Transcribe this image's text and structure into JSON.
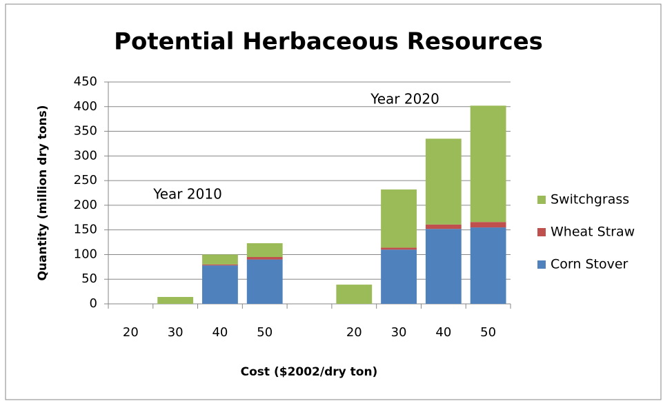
{
  "chart_data": {
    "type": "stacked_bar",
    "title": "Potential Herbaceous Resources",
    "y_label": "Quantity (million dry tons)",
    "x_label": "Cost ($2002/dry ton)",
    "annotations": [
      "Year 2010",
      "Year 2020"
    ],
    "categories": [
      "20",
      "30",
      "40",
      "50",
      null,
      "20",
      "30",
      "40",
      "50"
    ],
    "series": [
      {
        "name": "Corn Stover",
        "color": "#4f81bd",
        "values": [
          0,
          0,
          78,
          90,
          null,
          0,
          110,
          152,
          155
        ]
      },
      {
        "name": "Wheat Straw",
        "color": "#c0504d",
        "values": [
          0,
          0,
          2,
          5,
          null,
          0,
          4,
          9,
          11
        ]
      },
      {
        "name": "Switchgrass",
        "color": "#9bbb59",
        "values": [
          0,
          14,
          20,
          28,
          null,
          39,
          118,
          174,
          236
        ]
      }
    ],
    "ylim": [
      0,
      450
    ],
    "yticks": [
      0,
      50,
      100,
      150,
      200,
      250,
      300,
      350,
      400,
      450
    ],
    "grid": true,
    "legend": "right"
  }
}
